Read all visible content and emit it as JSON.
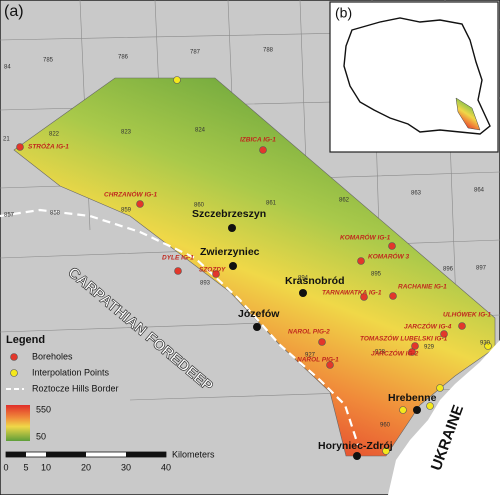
{
  "panel_labels": [
    "(a)",
    "(b)"
  ],
  "sheet_numbers": [
    "785",
    "786",
    "787",
    "788",
    "84",
    "21",
    "822",
    "823",
    "824",
    "857",
    "858",
    "859",
    "860",
    "861",
    "862",
    "863",
    "864",
    "893",
    "894",
    "895",
    "896",
    "897",
    "927",
    "928",
    "929",
    "930",
    "960"
  ],
  "boreholes": [
    "STRÓŻA IG-1",
    "IZBICA IG-1",
    "CHRZANÓW IG-1",
    "DYLE IG-1",
    "SZOZDY",
    "KOMARÓW IG-1",
    "KOMARÓW 3",
    "TARNAWATKA IG-1",
    "RACHANIE IG-1",
    "ULHÓWEK IG-1",
    "JARCZÓW IG-4",
    "TOMASZÓW LUBELSKI IG-1",
    "JARCZÓW IG-2",
    "NAROL PIG-2",
    "NAROL PIG-1"
  ],
  "towns": [
    "Szczebrzeszyn",
    "Zwierzyniec",
    "Krasnobród",
    "Józefów",
    "Hrebenne",
    "Horyniec-Zdrój"
  ],
  "regions": [
    "CARPATHIAN FOREDEEP",
    "UKRAINE"
  ],
  "legend": {
    "title": "Legend",
    "items": [
      "Boreholes",
      "Interpolation Points",
      "Roztocze Hills Border"
    ],
    "scale_max": "550",
    "scale_min": "50"
  },
  "scale_bar": {
    "ticks": [
      "0",
      "5",
      "10",
      "20",
      "30",
      "40"
    ],
    "unit": "Kilometers"
  }
}
